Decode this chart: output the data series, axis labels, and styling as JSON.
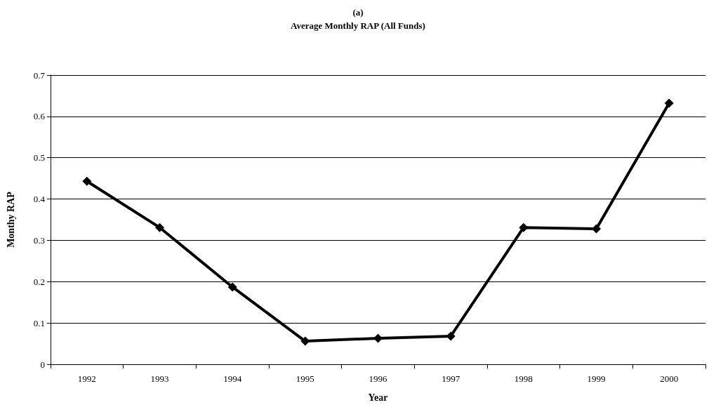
{
  "chart_data": {
    "type": "line",
    "title": "(a)",
    "subtitle": "Average Monthly RAP (All Funds)",
    "xlabel": "Year",
    "ylabel": "Monthy RAP",
    "categories": [
      "1992",
      "1993",
      "1994",
      "1995",
      "1996",
      "1997",
      "1998",
      "1999",
      "2000"
    ],
    "series": [
      {
        "color": "#000000",
        "values": [
          0.443,
          0.331,
          0.187,
          0.056,
          0.063,
          0.068,
          0.331,
          0.328,
          0.632
        ]
      }
    ],
    "ylim": [
      0,
      0.7
    ],
    "yticks": [
      0,
      0.1,
      0.2,
      0.3,
      0.4,
      0.5,
      0.6,
      0.7
    ],
    "grid": "y",
    "marker": "diamond",
    "line_style": "solid"
  }
}
